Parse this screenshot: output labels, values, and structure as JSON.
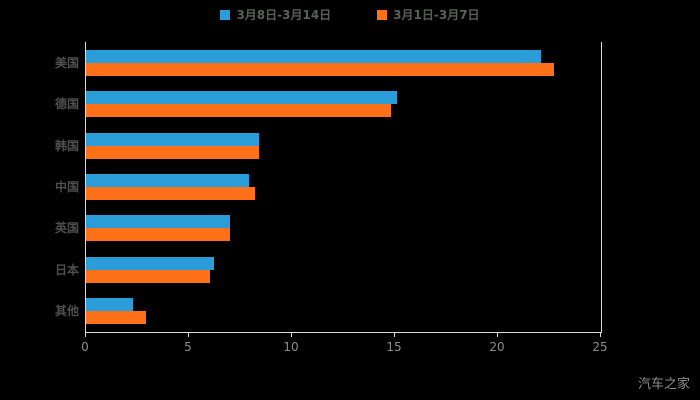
{
  "watermark": "汽车之家",
  "chart_data": {
    "type": "bar",
    "orientation": "horizontal",
    "title": "",
    "xlabel": "",
    "ylabel": "",
    "categories": [
      "美国",
      "德国",
      "韩国",
      "中国",
      "英国",
      "日本",
      "其他"
    ],
    "series": [
      {
        "name": "3月8日-3月14日",
        "color": "#2A9DD8",
        "values": [
          22.1,
          15.1,
          8.4,
          7.9,
          7.0,
          6.2,
          2.3
        ]
      },
      {
        "name": "3月1日-3月7日",
        "color": "#FF7119",
        "values": [
          22.7,
          14.8,
          8.4,
          8.2,
          7.0,
          6.0,
          2.9
        ]
      }
    ],
    "xlim": [
      0,
      25
    ],
    "xticks": [
      0,
      5,
      10,
      15,
      20,
      25
    ],
    "legend_position": "top",
    "grid": false,
    "background": "#000000"
  }
}
